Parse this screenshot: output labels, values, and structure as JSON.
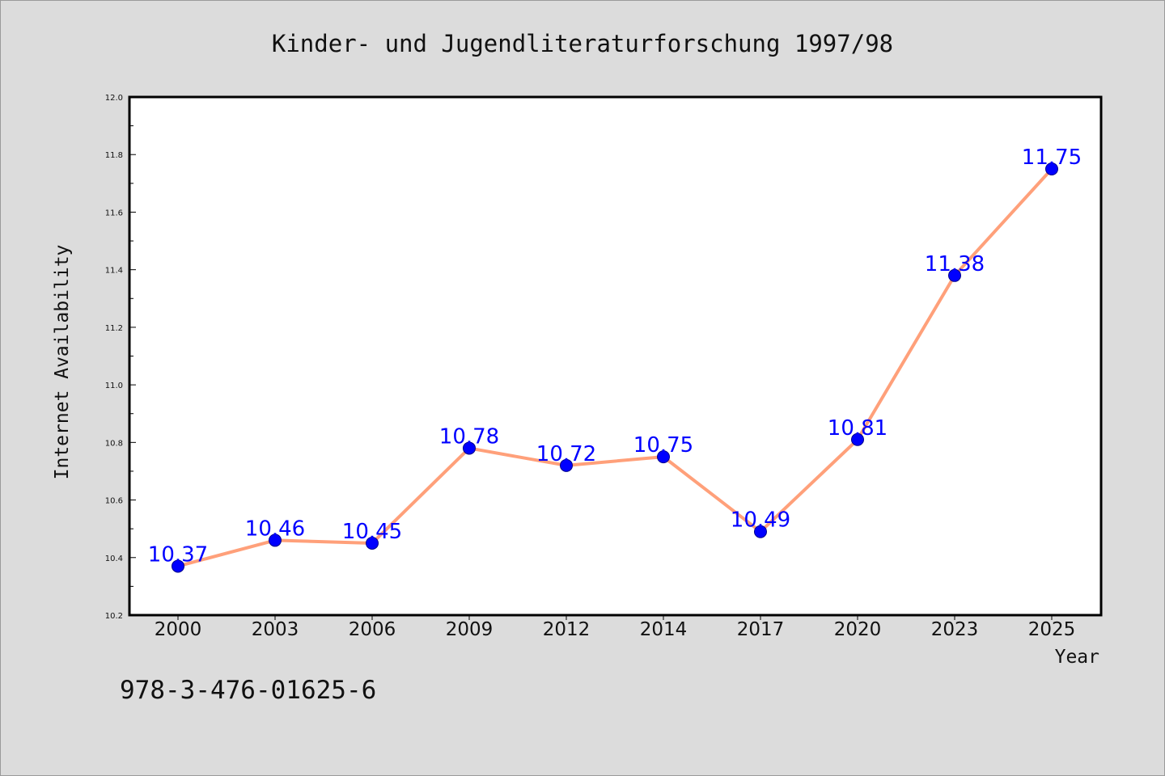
{
  "title": "Kinder- und Jugendliteraturforschung 1997/98",
  "footer_text": "978-3-476-01625-6",
  "colors": {
    "background": "#dcdcdc",
    "plot_background": "#ffffff",
    "line": "#ffa07a",
    "marker": "#0000ff",
    "data_label": "#0000ff"
  },
  "chart_data": {
    "type": "line",
    "title": "Kinder- und Jugendliteraturforschung 1997/98",
    "xlabel": "Year",
    "ylabel": "Internet Availability",
    "x": [
      "2000",
      "2003",
      "2006",
      "2009",
      "2012",
      "2014",
      "2017",
      "2020",
      "2023",
      "2025"
    ],
    "series": [
      {
        "values": [
          10.37,
          10.46,
          10.45,
          10.78,
          10.72,
          10.75,
          10.49,
          10.81,
          11.38,
          11.75
        ]
      }
    ],
    "data_labels": [
      "10.37",
      "10.46",
      "10.45",
      "10.78",
      "10.72",
      "10.75",
      "10.49",
      "10.81",
      "11.38",
      "11.75"
    ],
    "ylim": [
      10.2,
      12.0
    ],
    "yticks": [
      "10.2",
      "10.4",
      "10.6",
      "10.8",
      "11.0",
      "11.2",
      "11.4",
      "11.6",
      "11.8",
      "12.0"
    ],
    "grid": false,
    "legend": "none"
  }
}
